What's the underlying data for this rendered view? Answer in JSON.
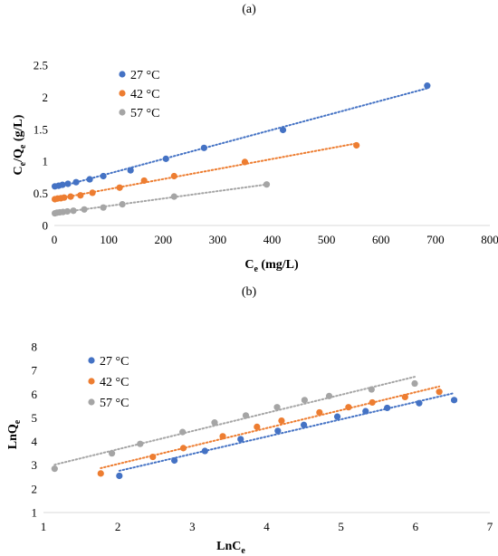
{
  "chart_data": [
    {
      "panel_label": "(a)",
      "type": "scatter",
      "xlabel_main": "C",
      "xlabel_sub": "e",
      "xlabel_unit": " (mg/L)",
      "ylabel_parts": [
        "C",
        "e",
        "/Q",
        "e",
        " (g/L)"
      ],
      "xlim": [
        0,
        800
      ],
      "ylim": [
        0,
        2.5
      ],
      "x_ticks": [
        "0",
        "100",
        "200",
        "300",
        "400",
        "500",
        "600",
        "700",
        "800"
      ],
      "y_ticks": [
        "0",
        "0.5",
        "1",
        "1.5",
        "2",
        "2.5"
      ],
      "legend_position": "top-left",
      "grid": false,
      "trendline": "linear dotted",
      "series": [
        {
          "name": "27 °C",
          "color": "#4472C4",
          "x": [
            1,
            8,
            15,
            25,
            40,
            65,
            90,
            140,
            205,
            275,
            420,
            685
          ],
          "y": [
            0.61,
            0.62,
            0.635,
            0.65,
            0.675,
            0.72,
            0.77,
            0.86,
            1.04,
            1.21,
            1.49,
            2.18
          ]
        },
        {
          "name": "42 °C",
          "color": "#ED7D31",
          "x": [
            1,
            6,
            12,
            18,
            30,
            48,
            70,
            120,
            165,
            220,
            350,
            555
          ],
          "y": [
            0.41,
            0.42,
            0.425,
            0.435,
            0.45,
            0.47,
            0.51,
            0.59,
            0.7,
            0.77,
            0.99,
            1.25
          ]
        },
        {
          "name": "57 °C",
          "color": "#A5A5A5",
          "x": [
            1,
            5,
            10,
            16,
            24,
            35,
            55,
            90,
            125,
            220,
            390
          ],
          "y": [
            0.19,
            0.2,
            0.205,
            0.21,
            0.22,
            0.23,
            0.25,
            0.28,
            0.33,
            0.45,
            0.64
          ]
        }
      ]
    },
    {
      "panel_label": "(b)",
      "type": "scatter",
      "xlabel_main": "LnC",
      "xlabel_sub": "e",
      "ylabel_main": "LnQ",
      "ylabel_sub": "e",
      "xlim": [
        1,
        7
      ],
      "ylim": [
        1,
        8
      ],
      "x_ticks": [
        "1",
        "2",
        "3",
        "4",
        "5",
        "6",
        "7"
      ],
      "y_ticks": [
        "1",
        "2",
        "3",
        "4",
        "5",
        "6",
        "7",
        "8"
      ],
      "legend_position": "top-left",
      "grid": false,
      "trendline": "linear dotted",
      "series": [
        {
          "name": "27 °C",
          "color": "#4472C4",
          "x": [
            2.02,
            2.76,
            3.17,
            3.65,
            4.15,
            4.5,
            4.95,
            5.33,
            5.62,
            6.05,
            6.52
          ],
          "y": [
            2.55,
            3.2,
            3.6,
            4.1,
            4.45,
            4.7,
            5.05,
            5.28,
            5.42,
            5.62,
            5.75
          ]
        },
        {
          "name": "42 °C",
          "color": "#ED7D31",
          "x": [
            1.77,
            2.47,
            2.88,
            3.41,
            3.87,
            4.2,
            4.71,
            5.1,
            5.42,
            5.86,
            6.32
          ],
          "y": [
            2.65,
            3.35,
            3.72,
            4.22,
            4.62,
            4.88,
            5.23,
            5.45,
            5.65,
            5.88,
            6.1
          ]
        },
        {
          "name": "57 °C",
          "color": "#A5A5A5",
          "x": [
            1.15,
            1.92,
            2.3,
            2.87,
            3.3,
            3.72,
            4.14,
            4.51,
            4.84,
            5.41,
            5.99
          ],
          "y": [
            2.85,
            3.5,
            3.9,
            4.4,
            4.8,
            5.1,
            5.45,
            5.75,
            5.92,
            6.2,
            6.45
          ]
        }
      ]
    }
  ]
}
